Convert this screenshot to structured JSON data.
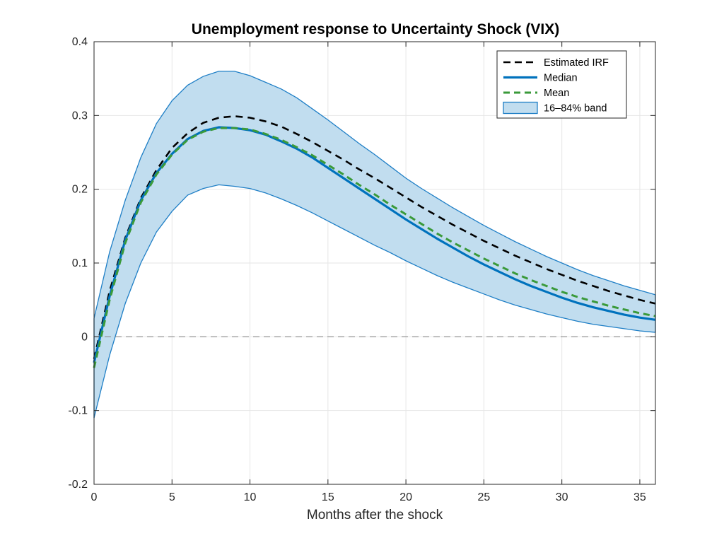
{
  "chart_data": {
    "type": "line",
    "title": "Unemployment response to Uncertainty Shock (VIX)",
    "xlabel": "Months after the shock",
    "ylabel": "",
    "xlim": [
      0,
      36
    ],
    "ylim": [
      -0.2,
      0.4
    ],
    "xticks": [
      0,
      5,
      10,
      15,
      20,
      25,
      30,
      35
    ],
    "yticks": [
      -0.2,
      -0.1,
      0,
      0.1,
      0.2,
      0.3,
      0.4
    ],
    "ytick_labels": [
      "-0.2",
      "-0.1",
      "0",
      "0.1",
      "0.2",
      "0.3",
      "0.4"
    ],
    "grid": true,
    "legend_position": "top-right",
    "x": [
      0,
      1,
      2,
      3,
      4,
      5,
      6,
      7,
      8,
      9,
      10,
      11,
      12,
      13,
      14,
      15,
      16,
      17,
      18,
      19,
      20,
      21,
      22,
      23,
      24,
      25,
      26,
      27,
      28,
      29,
      30,
      31,
      32,
      33,
      34,
      35,
      36
    ],
    "band": {
      "name": "16–84% band",
      "color": "#c1ddef",
      "edge_color": "#1f7fc6",
      "upper": [
        0.025,
        0.115,
        0.185,
        0.243,
        0.289,
        0.32,
        0.341,
        0.353,
        0.36,
        0.36,
        0.354,
        0.345,
        0.336,
        0.324,
        0.309,
        0.294,
        0.278,
        0.262,
        0.247,
        0.231,
        0.215,
        0.201,
        0.188,
        0.175,
        0.163,
        0.151,
        0.14,
        0.129,
        0.119,
        0.109,
        0.1,
        0.091,
        0.083,
        0.076,
        0.069,
        0.063,
        0.057
      ],
      "lower": [
        -0.11,
        -0.025,
        0.045,
        0.1,
        0.142,
        0.17,
        0.192,
        0.201,
        0.206,
        0.204,
        0.201,
        0.195,
        0.187,
        0.178,
        0.168,
        0.157,
        0.146,
        0.135,
        0.124,
        0.114,
        0.103,
        0.093,
        0.083,
        0.074,
        0.066,
        0.058,
        0.05,
        0.043,
        0.037,
        0.031,
        0.026,
        0.021,
        0.017,
        0.014,
        0.011,
        0.008,
        0.006
      ]
    },
    "series": [
      {
        "name": "Estimated IRF",
        "color": "#000000",
        "dash": "dashed",
        "values": [
          -0.03,
          0.062,
          0.134,
          0.188,
          0.226,
          0.256,
          0.276,
          0.29,
          0.297,
          0.299,
          0.297,
          0.292,
          0.285,
          0.275,
          0.264,
          0.252,
          0.24,
          0.227,
          0.215,
          0.202,
          0.189,
          0.176,
          0.164,
          0.152,
          0.141,
          0.13,
          0.12,
          0.11,
          0.101,
          0.092,
          0.084,
          0.076,
          0.069,
          0.062,
          0.056,
          0.05,
          0.045
        ]
      },
      {
        "name": "Median",
        "color": "#0072bd",
        "dash": "solid",
        "values": [
          -0.035,
          0.055,
          0.131,
          0.185,
          0.222,
          0.248,
          0.268,
          0.279,
          0.284,
          0.283,
          0.28,
          0.274,
          0.265,
          0.255,
          0.243,
          0.229,
          0.215,
          0.201,
          0.187,
          0.173,
          0.159,
          0.146,
          0.133,
          0.121,
          0.109,
          0.098,
          0.088,
          0.078,
          0.069,
          0.061,
          0.053,
          0.046,
          0.04,
          0.035,
          0.03,
          0.026,
          0.023
        ]
      },
      {
        "name": "Mean",
        "color": "#3a9a3a",
        "dash": "dashed",
        "values": [
          -0.042,
          0.05,
          0.127,
          0.182,
          0.22,
          0.247,
          0.267,
          0.278,
          0.283,
          0.283,
          0.281,
          0.275,
          0.267,
          0.257,
          0.246,
          0.233,
          0.22,
          0.206,
          0.193,
          0.179,
          0.166,
          0.153,
          0.14,
          0.128,
          0.117,
          0.106,
          0.096,
          0.086,
          0.077,
          0.069,
          0.061,
          0.054,
          0.048,
          0.042,
          0.037,
          0.032,
          0.028
        ]
      }
    ]
  }
}
